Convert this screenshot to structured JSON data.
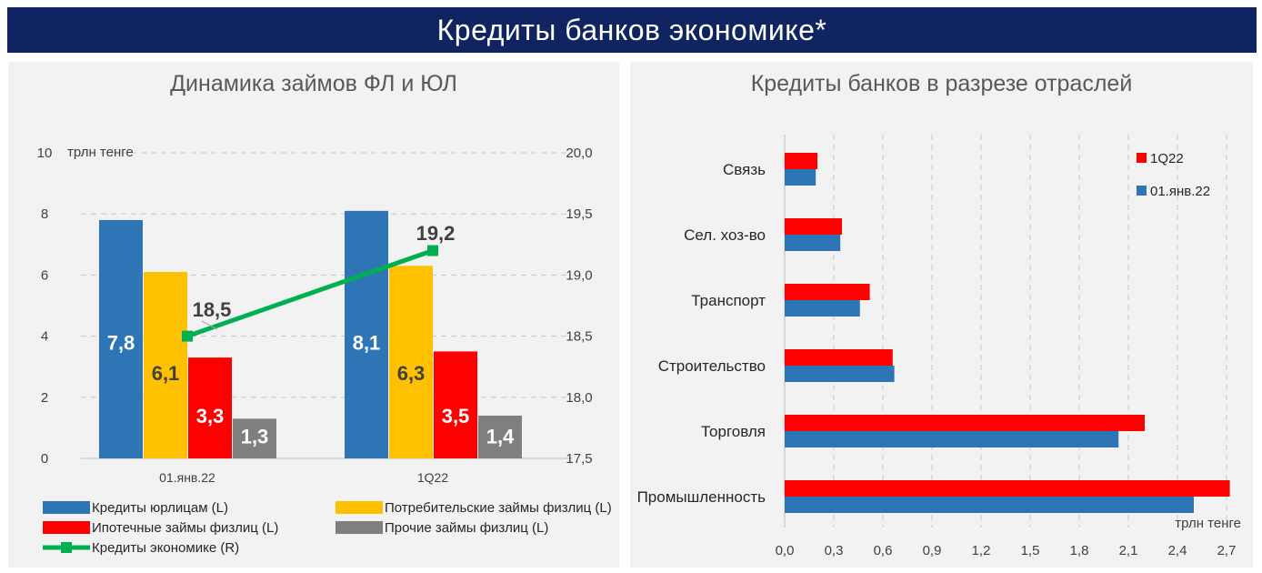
{
  "banner": {
    "title": "Кредиты банков экономике*"
  },
  "left_panel": {
    "title": "Динамика займов ФЛ и ЮЛ"
  },
  "right_panel": {
    "title": "Кредиты банков в разрезе отраслей"
  },
  "colors": {
    "banner_bg": "#0f2460",
    "corporate": "#2e75b6",
    "consumer": "#ffc000",
    "mortgage": "#ff0000",
    "other": "#7f7f7f",
    "economy_line": "#00b050",
    "q1_22": "#ff0000",
    "jan22": "#2e75b6"
  },
  "chart_data": [
    {
      "type": "bar",
      "title": "Динамика займов ФЛ и ЮЛ",
      "unit_label": "трлн тенге",
      "categories": [
        "01.янв.22",
        "1Q22"
      ],
      "ylim": [
        0,
        10
      ],
      "yticks": [
        "0",
        "2",
        "4",
        "6",
        "8",
        "10"
      ],
      "y2lim": [
        17.5,
        20.0
      ],
      "y2ticks": [
        "17,5",
        "18,0",
        "18,5",
        "19,0",
        "19,5",
        "20,0"
      ],
      "grid": "horizontal dashed",
      "legend_position": "bottom",
      "series": [
        {
          "name": "Кредиты юрлицам (L)",
          "axis": "left",
          "values": [
            7.8,
            8.1
          ],
          "labels": [
            "7,8",
            "8,1"
          ]
        },
        {
          "name": "Потребительские займы физлиц (L)",
          "axis": "left",
          "values": [
            6.1,
            6.3
          ],
          "labels": [
            "6,1",
            "6,3"
          ]
        },
        {
          "name": "Ипотечные займы физлиц (L)",
          "axis": "left",
          "values": [
            3.3,
            3.5
          ],
          "labels": [
            "3,3",
            "3,5"
          ]
        },
        {
          "name": "Прочие займы физлиц (L)",
          "axis": "left",
          "values": [
            1.3,
            1.4
          ],
          "labels": [
            "1,3",
            "1,4"
          ]
        },
        {
          "name": "Кредиты экономике (R)",
          "type": "line",
          "axis": "right",
          "values": [
            18.5,
            19.2
          ],
          "labels": [
            "18,5",
            "19,2"
          ]
        }
      ]
    },
    {
      "type": "bar",
      "orientation": "horizontal",
      "title": "Кредиты банков в разрезе отраслей",
      "xlabel": "трлн тенге",
      "categories": [
        "Связь",
        "Сел. хоз-во",
        "Транспорт",
        "Строительство",
        "Торговля",
        "Промышленность"
      ],
      "xlim": [
        0,
        2.7
      ],
      "xticks": [
        "0,0",
        "0,3",
        "0,6",
        "0,9",
        "1,2",
        "1,5",
        "1,8",
        "2,1",
        "2,4",
        "2,7"
      ],
      "grid": "vertical dashed",
      "legend_position": "top-right",
      "series": [
        {
          "name": "1Q22",
          "values": [
            0.2,
            0.35,
            0.52,
            0.66,
            2.2,
            2.72
          ]
        },
        {
          "name": "01.янв.22",
          "values": [
            0.19,
            0.34,
            0.46,
            0.67,
            2.04,
            2.5
          ]
        }
      ]
    }
  ]
}
